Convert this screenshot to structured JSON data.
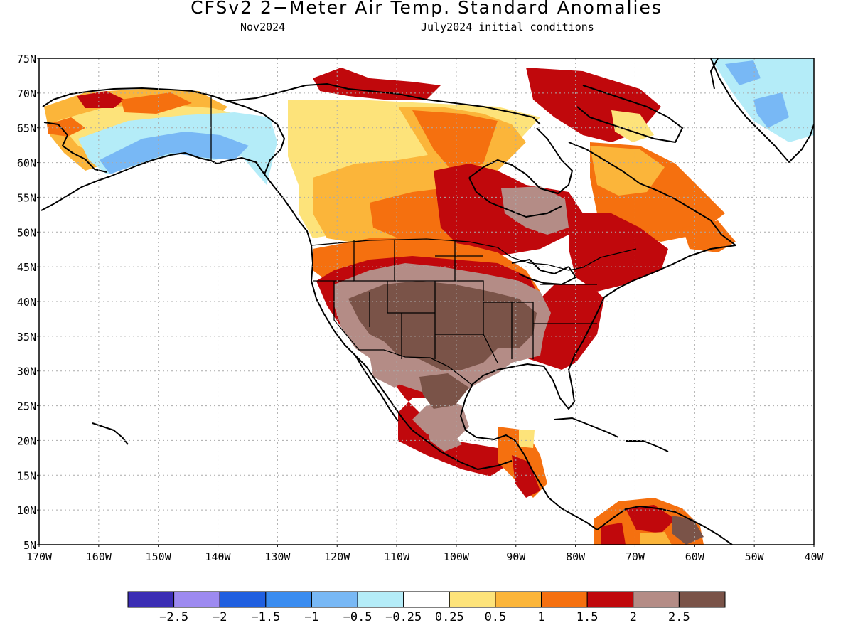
{
  "title": "CFSv2 2−Meter Air Temp. Standard Anomalies",
  "subtitle_left": "Nov2024",
  "subtitle_right": "July2024 initial conditions",
  "map": {
    "lat_labels": [
      "75N",
      "70N",
      "65N",
      "60N",
      "55N",
      "50N",
      "45N",
      "40N",
      "35N",
      "30N",
      "25N",
      "20N",
      "15N",
      "10N",
      "5N"
    ],
    "lon_labels": [
      "170W",
      "160W",
      "150W",
      "140W",
      "130W",
      "120W",
      "110W",
      "100W",
      "90W",
      "80W",
      "70W",
      "60W",
      "50W",
      "40W"
    ],
    "land_color": "#ffffff",
    "coast_color": "#000000",
    "grid_style": "dotted"
  },
  "legend": {
    "colors": [
      "#3b2db4",
      "#9d8af0",
      "#1f5fe0",
      "#3a8cf0",
      "#78b8f5",
      "#b4ecf8",
      "#ffffff",
      "#fde37a",
      "#fbb53a",
      "#f5700f",
      "#c0080c",
      "#b48c86",
      "#7a5348"
    ],
    "labels": [
      "−2.5",
      "−2",
      "−1.5",
      "−1",
      "−0.5",
      "−0.25",
      "0.25",
      "0.5",
      "1",
      "1.5",
      "2",
      "2.5"
    ]
  },
  "anomaly_colors": {
    "strong_warm": "#7a5348",
    "warm_2_25": "#b48c86",
    "warm_15_2": "#c0080c",
    "warm_1_15": "#f5700f",
    "warm_05_1": "#fbb53a",
    "warm_025_05": "#fde37a",
    "cool_025_05": "#b4ecf8",
    "cool_05_1": "#78b8f5"
  }
}
